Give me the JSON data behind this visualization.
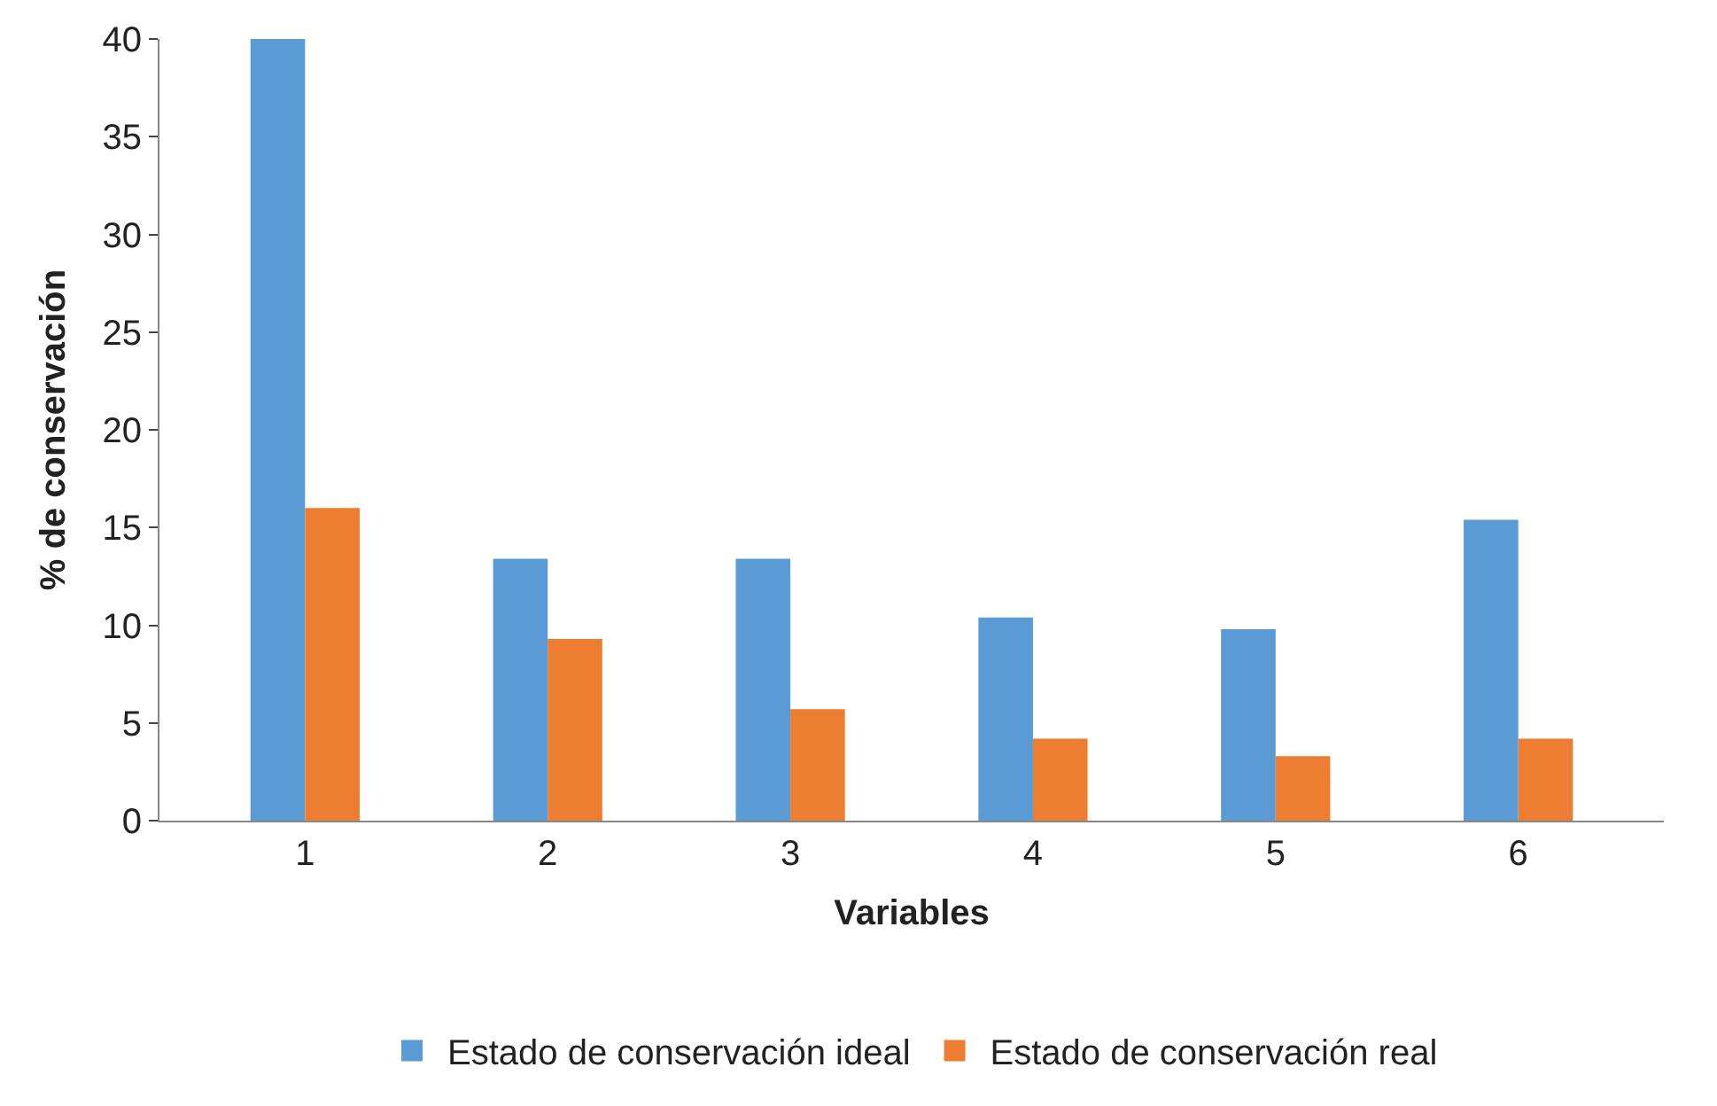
{
  "chart_data": {
    "type": "bar",
    "xlabel": "Variables",
    "ylabel": "% de conservación",
    "categories": [
      "1",
      "2",
      "3",
      "4",
      "5",
      "6"
    ],
    "series": [
      {
        "name": "Estado de conservación ideal",
        "color": "#5b9bd5",
        "values": [
          40,
          13.4,
          13.4,
          10.4,
          9.8,
          15.4
        ]
      },
      {
        "name": "Estado de conservación real",
        "color": "#ed7d31",
        "values": [
          16,
          9.3,
          5.7,
          4.2,
          3.3,
          4.2
        ]
      }
    ],
    "ylim": [
      0,
      40
    ],
    "yticks": [
      0,
      5,
      10,
      15,
      20,
      25,
      30,
      35,
      40
    ],
    "legend": "bottom"
  }
}
